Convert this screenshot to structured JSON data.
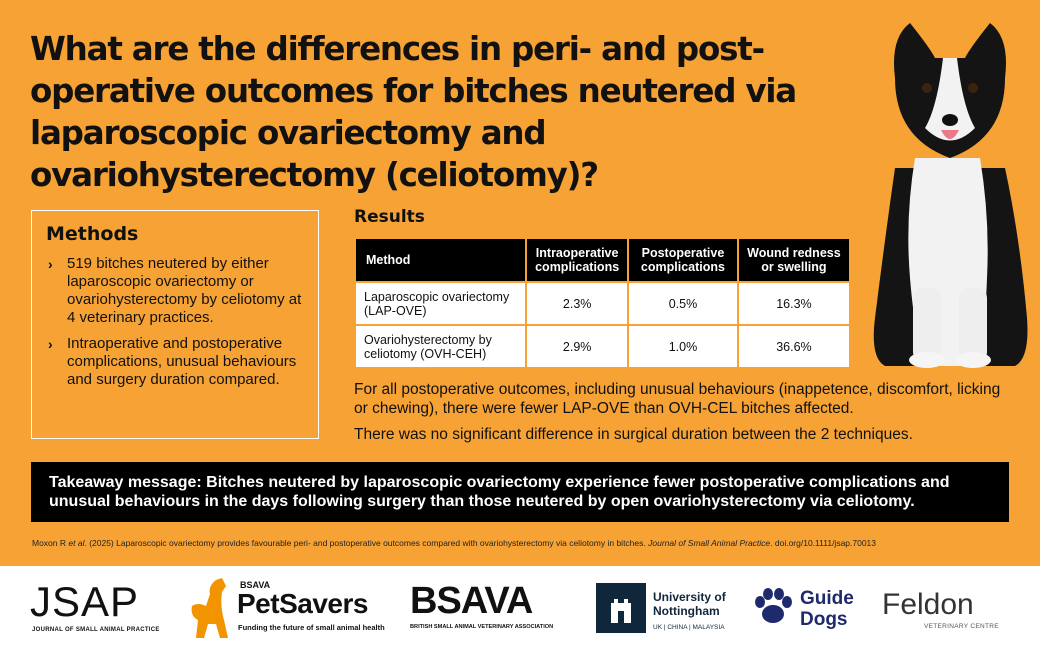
{
  "title": "What are the differences in peri- and post-operative outcomes for bitches neutered via laparoscopic ovariectomy and ovariohysterectomy (celiotomy)?",
  "methods": {
    "heading": "Methods",
    "bullet_glyph": "›",
    "items": [
      "519 bitches neutered by either laparoscopic ovariectomy or ovariohysterectomy by celiotomy at 4 veterinary practices.",
      "Intraoperative and postoperative complications, unusual behaviours and surgery duration compared."
    ]
  },
  "results": {
    "heading": "Results",
    "columns": [
      "Method",
      "Intraoperative complications",
      "Postoperative complications",
      "Wound redness or swelling"
    ],
    "rows": [
      [
        "Laparoscopic ovariectomy (LAP-OVE)",
        "2.3%",
        "0.5%",
        "16.3%"
      ],
      [
        "Ovariohysterectomy by celiotomy (OVH-CEH)",
        "2.9%",
        "1.0%",
        "36.6%"
      ]
    ],
    "paragraphs": [
      "For all postoperative outcomes, including unusual behaviours (inappetence, discomfort, licking or chewing), there were fewer LAP-OVE than OVH-CEL bitches affected.",
      "There was no significant difference in surgical duration between the 2 techniques."
    ]
  },
  "takeaway": "Takeaway message: Bitches neutered by laparoscopic ovariectomy experience fewer postoperative complications and unusual behaviours in the days following surgery than those neutered by open ovariohysterectomy via celiotomy.",
  "citation": {
    "authors": "Moxon R",
    "etal": "et al.",
    "text": " (2025) Laparoscopic ovariectomy provides favourable peri- and postoperative outcomes compared with ovariohysterectomy via celiotomy in bitches. ",
    "journal": "Journal of Small Animal Practice",
    "doi": ". doi.org/10.1111/jsap.70013"
  },
  "logos": {
    "jsap": {
      "name": "JSAP",
      "sub": "JOURNAL OF SMALL ANIMAL PRACTICE"
    },
    "petsavers": {
      "pre": "BSAVA",
      "name": "PetSavers",
      "tag": "Funding the future of small animal health"
    },
    "bsava": {
      "name": "BSAVA",
      "tag": "BRITISH SMALL ANIMAL VETERINARY ASSOCIATION"
    },
    "nottingham": {
      "name_line1": "University of",
      "name_line2": "Nottingham",
      "sub": "UK | CHINA | MALAYSIA"
    },
    "guidedogs": {
      "line1": "Guide",
      "line2": "Dogs"
    },
    "feldon": {
      "name": "Feldon",
      "tag": "VETERINARY CENTRE"
    }
  },
  "colors": {
    "background": "#f7a234",
    "dark": "#000000",
    "navy": "#1e2a6b"
  }
}
